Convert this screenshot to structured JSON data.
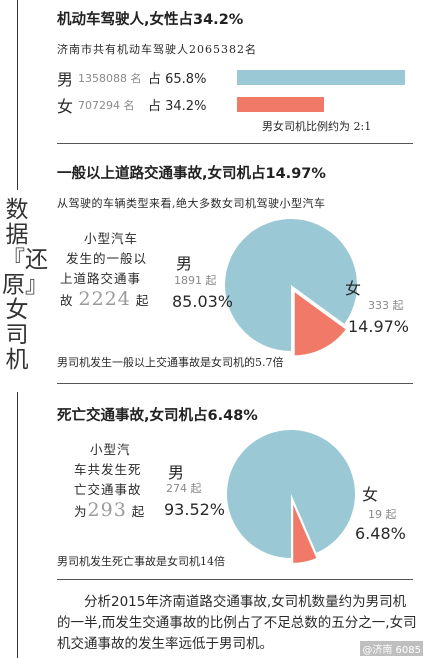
{
  "colors": {
    "male": "#9ac8d5",
    "female": "#f07a67",
    "text": "#2a2a2a"
  },
  "side_title": "数据『还原』女司机",
  "section1": {
    "title": "机动车驾驶人,女性占34.2%",
    "total_line": "济南市共有机动车驾驶人2065382名",
    "male_label": "男",
    "male_count": "1358088 名",
    "male_pct": "占 65.8%",
    "female_label": "女",
    "female_count": "707294 名",
    "female_pct": "占 34.2%",
    "ratio_note": "男女司机比例约为 2:1"
  },
  "section2": {
    "title": "一般以上道路交通事故,女司机占14.97%",
    "subtitle": "从驾驶的车辆类型来看,绝大多数女司机驾驶小型汽车",
    "desc_lines": [
      "小型汽车",
      "发生的一般以",
      "上道路交通事"
    ],
    "desc_prefix": "故",
    "desc_total": "2224",
    "desc_suffix": "起",
    "male_label": "男",
    "male_count": "1891 起",
    "male_pct": "85.03%",
    "female_label": "女",
    "female_count": "333 起",
    "female_pct": "14.97%",
    "note": "男司机发生一般以上交通事故是女司机的5.7倍"
  },
  "section3": {
    "title": "死亡交通事故,女司机占6.48%",
    "desc_lines": [
      "小型汽",
      "车共发生死",
      "亡交通事故"
    ],
    "desc_prefix": "为",
    "desc_total": "293",
    "desc_suffix": "起",
    "male_label": "男",
    "male_count": "274 起",
    "male_pct": "93.52%",
    "female_label": "女",
    "female_count": "19 起",
    "female_pct": "6.48%",
    "note": "男司机发生死亡事故是女司机14倍"
  },
  "summary": "分析2015年济南道路交通事故,女司机数量约为男司机的一半,而发生交通事故的比例占了不足总数的五分之一,女司机交通事故的发生率远低于男司机。",
  "watermark": "@济南 6085",
  "chart_data": [
    {
      "type": "bar",
      "title": "机动车驾驶人,女性占34.2%",
      "categories": [
        "男",
        "女"
      ],
      "values": [
        1358088,
        707294
      ],
      "percent": [
        65.8,
        34.2
      ]
    },
    {
      "type": "pie",
      "title": "一般以上道路交通事故,女司机占14.97%",
      "categories": [
        "男",
        "女"
      ],
      "values": [
        1891,
        333
      ],
      "percent": [
        85.03,
        14.97
      ]
    },
    {
      "type": "pie",
      "title": "死亡交通事故,女司机占6.48%",
      "categories": [
        "男",
        "女"
      ],
      "values": [
        274,
        19
      ],
      "percent": [
        93.52,
        6.48
      ]
    }
  ]
}
